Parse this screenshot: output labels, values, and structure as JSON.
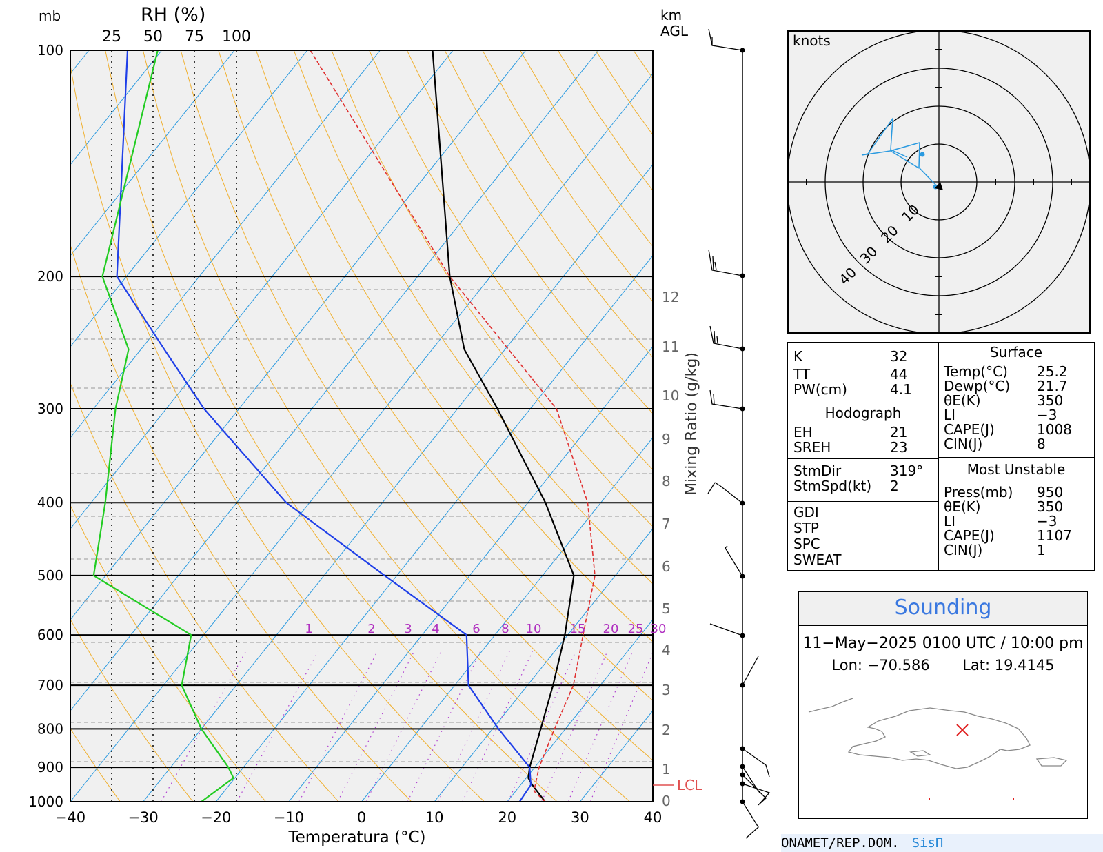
{
  "chart_data": {
    "type": "skew-t",
    "title": "",
    "xlabel": "Temperatura (°C)",
    "ylabel": "mb",
    "rh_axis_label": "RH (%)",
    "height_axis_label": "km AGL",
    "mixing_axis_label": "Mixing Ratio (g/kg)",
    "xlim": [
      -40,
      40
    ],
    "pressure_range_mb": [
      100,
      1000
    ],
    "x_ticks": [
      "−40",
      "−30",
      "−20",
      "−10",
      "0",
      "10",
      "20",
      "30",
      "40"
    ],
    "pressure_ticks": [
      "100",
      "200",
      "300",
      "400",
      "500",
      "600",
      "700",
      "800",
      "900",
      "1000"
    ],
    "rh_ticks": [
      "25",
      "50",
      "75",
      "100"
    ],
    "height_ticks_km": [
      "0",
      "1",
      "2",
      "3",
      "4",
      "5",
      "6",
      "7",
      "8",
      "9",
      "10",
      "11",
      "12"
    ],
    "mixing_ratio_labels": [
      "1",
      "2",
      "3",
      "4",
      "6",
      "8",
      "10",
      "15",
      "20",
      "25",
      "30"
    ],
    "lcl_label": "LCL",
    "lcl_pressure_mb": 968,
    "series": [
      {
        "role": "temperature",
        "color": "#000000",
        "points": [
          [
            1000,
            25.2
          ],
          [
            950,
            21.6
          ],
          [
            930,
            20.3
          ],
          [
            900,
            19.3
          ],
          [
            800,
            16.6
          ],
          [
            700,
            13.5
          ],
          [
            600,
            9.6
          ],
          [
            500,
            4.3
          ],
          [
            400,
            -7.6
          ],
          [
            300,
            -24.5
          ],
          [
            250,
            -35.6
          ],
          [
            200,
            -45.6
          ],
          [
            100,
            -72.8
          ]
        ]
      },
      {
        "role": "dewpoint",
        "color": "#1f3fe8",
        "points": [
          [
            1000,
            21.7
          ],
          [
            950,
            21.4
          ],
          [
            900,
            19.3
          ],
          [
            800,
            10.8
          ],
          [
            700,
            1.9
          ],
          [
            600,
            -3.9
          ],
          [
            500,
            -21.7
          ],
          [
            400,
            -43.2
          ],
          [
            300,
            -64.8
          ],
          [
            250,
            -76.8
          ],
          [
            200,
            -91.3
          ],
          [
            100,
            -114.7
          ]
        ]
      },
      {
        "role": "parcel",
        "color": "#e03030",
        "points": [
          [
            1000,
            25.2
          ],
          [
            968,
            22.5
          ],
          [
            900,
            20.6
          ],
          [
            800,
            18.5
          ],
          [
            700,
            16.3
          ],
          [
            600,
            12.1
          ],
          [
            500,
            7.2
          ],
          [
            400,
            -1.8
          ],
          [
            300,
            -16.4
          ],
          [
            200,
            -45.6
          ],
          [
            100,
            -89.6
          ]
        ]
      },
      {
        "role": "relative_humidity",
        "color": "#22cc22",
        "points": [
          [
            1000,
            -22
          ],
          [
            930,
            -17.6
          ],
          [
            900,
            -18.3
          ],
          [
            800,
            -22
          ],
          [
            700,
            -24.7
          ],
          [
            600,
            -23.4
          ],
          [
            500,
            -36.8
          ],
          [
            400,
            -35.2
          ],
          [
            300,
            -33.8
          ],
          [
            250,
            -32
          ],
          [
            200,
            -35.6
          ],
          [
            100,
            -28
          ]
        ]
      }
    ]
  },
  "wind_profile": {
    "barb_pressures_mb": [
      "100",
      "200",
      "250",
      "300",
      "400",
      "500",
      "600",
      "700",
      "850",
      "900",
      "925",
      "950",
      "1000"
    ]
  },
  "hodograph": {
    "unit_label": "knots",
    "ring_labels": [
      "10",
      "20",
      "30",
      "40"
    ],
    "trace_color": "#2a9ae0"
  },
  "indices": {
    "k_label": "K",
    "k_value": "32",
    "tt_label": "TT",
    "tt_value": "44",
    "pw_label": "PW(cm)",
    "pw_value": "4.1",
    "hodograph_header": "Hodograph",
    "eh_label": "EH",
    "eh_value": "21",
    "sreh_label": "SREH",
    "sreh_value": "23",
    "stmdir_label": "StmDir",
    "stmdir_value": "319°",
    "stmspd_label": "StmSpd(kt)",
    "stmspd_value": "2",
    "gdi_label": "GDI",
    "stp_label": "STP",
    "spc_label": "SPC",
    "sweat_label": "SWEAT",
    "surface_header": "Surface",
    "temp_label": "Temp(°C)",
    "temp_value": "25.2",
    "dewp_label": "Dewp(°C)",
    "dewp_value": "21.7",
    "theta_label": "θE(K)",
    "theta_value": "350",
    "li_label": "LI",
    "li_value": "−3",
    "cape_label": "CAPE(J)",
    "cape_value": "1008",
    "cin_label": "CIN(J)",
    "cin_value": "8",
    "mu_header": "Most Unstable",
    "mu_press_label": "Press(mb)",
    "mu_press_value": "950",
    "mu_theta_label": "θE(K)",
    "mu_theta_value": "350",
    "mu_li_label": "LI",
    "mu_li_value": "−3",
    "mu_cape_label": "CAPE(J)",
    "mu_cape_value": "1107",
    "mu_cin_label": "CIN(J)",
    "mu_cin_value": "1"
  },
  "info": {
    "title": "Sounding",
    "datetime": "11−May−2025 0100  UTC / 10:00 pm",
    "lon_label": "Lon:",
    "lon_value": "−70.586",
    "lat_label": "Lat:",
    "lat_value": "19.4145",
    "marker_color": "#e02020"
  },
  "footer": {
    "org": "ONAMET/REP.DOM.",
    "brand": "SisΠ"
  }
}
